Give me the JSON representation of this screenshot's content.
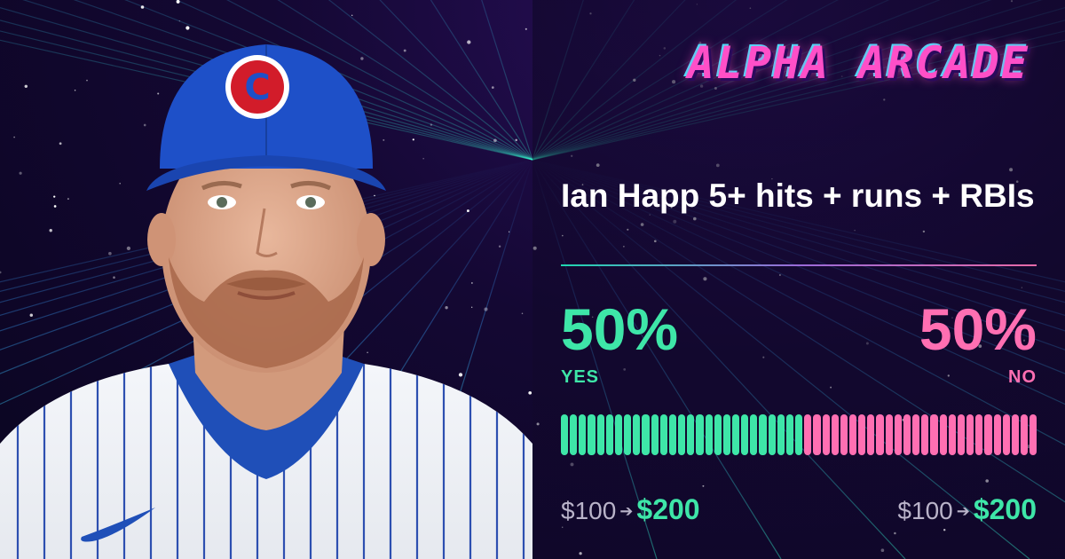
{
  "brand": {
    "name": "ALPHA ARCADE"
  },
  "market": {
    "title": "Ian Happ 5+ hits + runs + RBIs"
  },
  "yes": {
    "percent": "50%",
    "label": "YES",
    "fraction": 0.5,
    "stake": "$100",
    "arrow": "➔",
    "payout": "$200",
    "color": "#3ee6a8"
  },
  "no": {
    "percent": "50%",
    "label": "NO",
    "fraction": 0.5,
    "stake": "$100",
    "arrow": "➔",
    "payout": "$200",
    "color": "#ff6fb2"
  },
  "photo": {
    "team_logo_letter": "C",
    "subject": "player-headshot"
  }
}
